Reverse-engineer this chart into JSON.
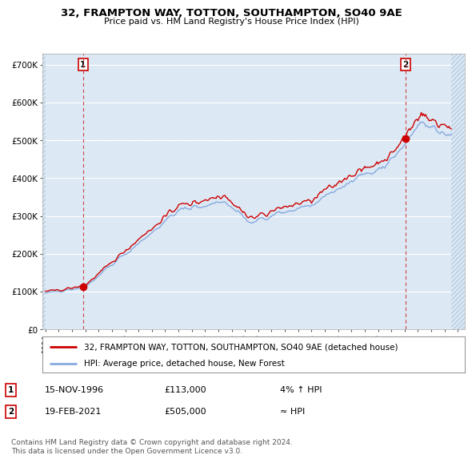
{
  "title_line1": "32, FRAMPTON WAY, TOTTON, SOUTHAMPTON, SO40 9AE",
  "title_line2": "Price paid vs. HM Land Registry's House Price Index (HPI)",
  "bg_color": "#dce9f5",
  "hatch_color": "#c8d8ec",
  "grid_color": "#ffffff",
  "red_line_color": "#cc0000",
  "blue_line_color": "#88aadd",
  "ylabel_ticks": [
    "£0",
    "£100K",
    "£200K",
    "£300K",
    "£400K",
    "£500K",
    "£600K",
    "£700K"
  ],
  "ylabel_values": [
    0,
    100000,
    200000,
    300000,
    400000,
    500000,
    600000,
    700000
  ],
  "ylim": [
    0,
    730000
  ],
  "xlim_start": 1993.75,
  "xlim_end": 2025.5,
  "data_start": 1994.0,
  "data_end": 2024.33,
  "annotation1_date": "15-NOV-1996",
  "annotation1_price": "£113,000",
  "annotation1_rel": "4% ↑ HPI",
  "annotation2_date": "19-FEB-2021",
  "annotation2_price": "£505,000",
  "annotation2_rel": "≈ HPI",
  "legend_label1": "32, FRAMPTON WAY, TOTTON, SOUTHAMPTON, SO40 9AE (detached house)",
  "legend_label2": "HPI: Average price, detached house, New Forest",
  "footer": "Contains HM Land Registry data © Crown copyright and database right 2024.\nThis data is licensed under the Open Government Licence v3.0."
}
